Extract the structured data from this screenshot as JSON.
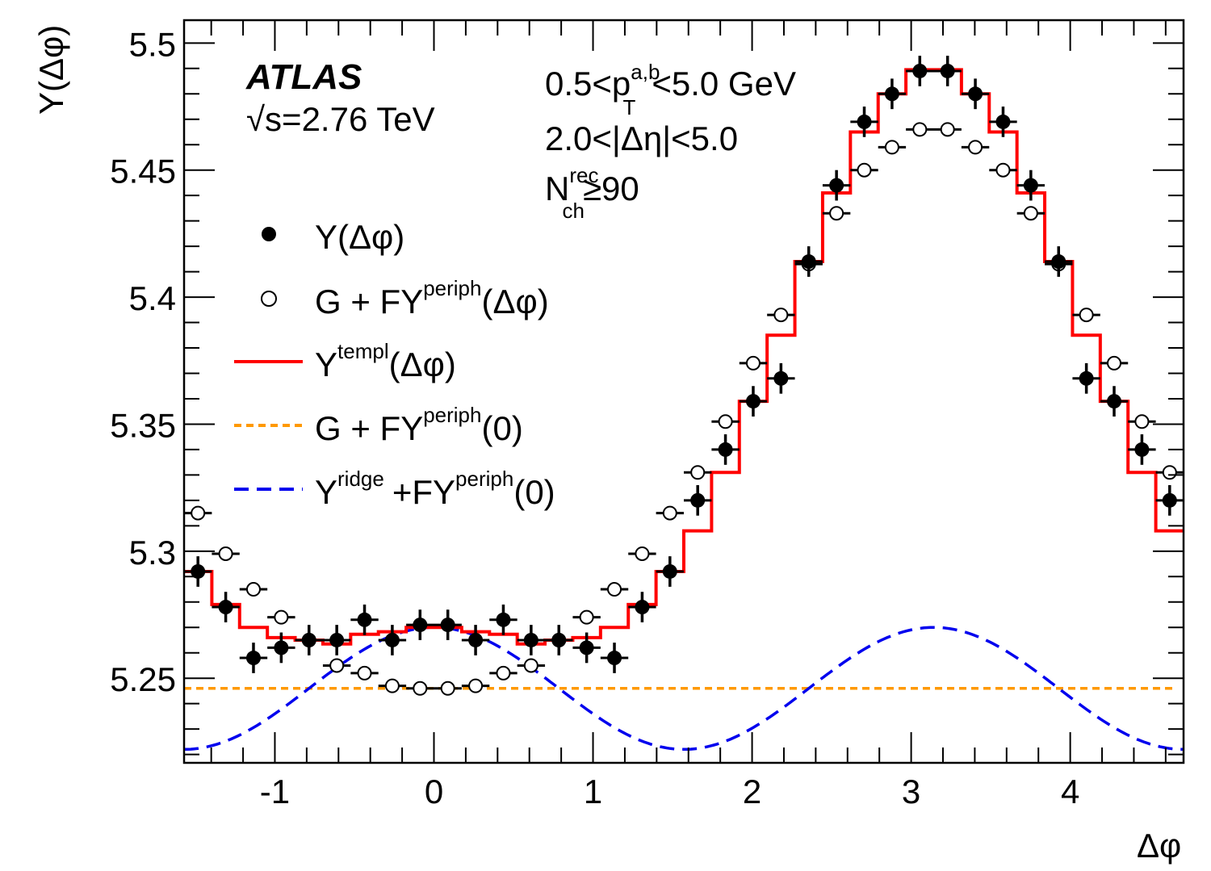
{
  "chart_data": {
    "type": "scatter",
    "xlabel": "Δφ",
    "ylabel": "Y(Δφ)",
    "xlim": [
      -1.5708,
      4.7124
    ],
    "ylim": [
      5.2167,
      5.509
    ],
    "xticks": [
      "-1",
      "0",
      "1",
      "2",
      "3",
      "4"
    ],
    "yticks": [
      "5.25",
      "5.3",
      "5.35",
      "5.4",
      "5.45",
      "5.5"
    ],
    "grid": false,
    "legend_placement": "left",
    "experiment": "ATLAS",
    "energy": "√s=2.76 TeV",
    "annotations": {
      "pt": {
        "pre": "0.5<p",
        "sup": "a,b",
        "sub": "T",
        "post": "<5.0 GeV"
      },
      "eta": "2.0<|Δη|<5.0",
      "nch": {
        "pre": "N",
        "sup": "rec",
        "sub": "ch",
        "post": "≥90"
      }
    },
    "bins": 36,
    "colors": {
      "template": "#ff0000",
      "flat": "#ff9900",
      "ridge": "#0000ee",
      "data": "#000000"
    },
    "series": [
      {
        "name": "Y(Δφ)",
        "legend": {
          "main": "Y(Δφ)"
        },
        "style": "filled-marker",
        "values": [
          5.292,
          5.278,
          5.258,
          5.262,
          5.265,
          5.265,
          5.273,
          5.265,
          5.271,
          5.271,
          5.265,
          5.273,
          5.265,
          5.265,
          5.262,
          5.258,
          5.278,
          5.292,
          5.32,
          5.34,
          5.359,
          5.368,
          5.414,
          5.444,
          5.469,
          5.48,
          5.489,
          5.489,
          5.48,
          5.469,
          5.444,
          5.414,
          5.368,
          5.359,
          5.34,
          5.32
        ],
        "error": 0.006
      },
      {
        "name": "G + FY^periph(Δφ)",
        "legend": {
          "main": "G + FY",
          "sup": "periph",
          "post": "(Δφ)"
        },
        "style": "open-marker",
        "values": [
          5.315,
          5.299,
          5.285,
          5.274,
          5.265,
          5.255,
          5.252,
          5.247,
          5.246,
          5.246,
          5.247,
          5.252,
          5.255,
          5.265,
          5.274,
          5.285,
          5.299,
          5.315,
          5.331,
          5.351,
          5.374,
          5.393,
          5.413,
          5.433,
          5.45,
          5.459,
          5.466,
          5.466,
          5.459,
          5.45,
          5.433,
          5.413,
          5.393,
          5.374,
          5.351,
          5.331
        ]
      },
      {
        "name": "Y^templ(Δφ)",
        "legend": {
          "main": "Y",
          "sup": "templ",
          "post": "(Δφ)"
        },
        "style": "red-step",
        "values": [
          5.292,
          5.279,
          5.27,
          5.266,
          5.265,
          5.2635,
          5.2673,
          5.2683,
          5.27,
          5.27,
          5.2683,
          5.2673,
          5.2635,
          5.265,
          5.266,
          5.27,
          5.279,
          5.292,
          5.308,
          5.331,
          5.359,
          5.385,
          5.414,
          5.441,
          5.465,
          5.48,
          5.4895,
          5.4895,
          5.48,
          5.465,
          5.441,
          5.414,
          5.385,
          5.359,
          5.331,
          5.308
        ]
      },
      {
        "name": "G + FY^periph(0)",
        "legend": {
          "main": "G + FY",
          "sup": "periph",
          "post": "(0)"
        },
        "style": "orange-dotted",
        "value": 5.246
      },
      {
        "name": "Y^ridge + FY^periph(0)",
        "legend": {
          "main": "Y",
          "sup": "ridge",
          "mid": "+FY",
          "sup2": "periph",
          "post": "(0)"
        },
        "style": "blue-dashed",
        "function": "5.246 + 0.024*cos(2Δφ)"
      }
    ]
  }
}
